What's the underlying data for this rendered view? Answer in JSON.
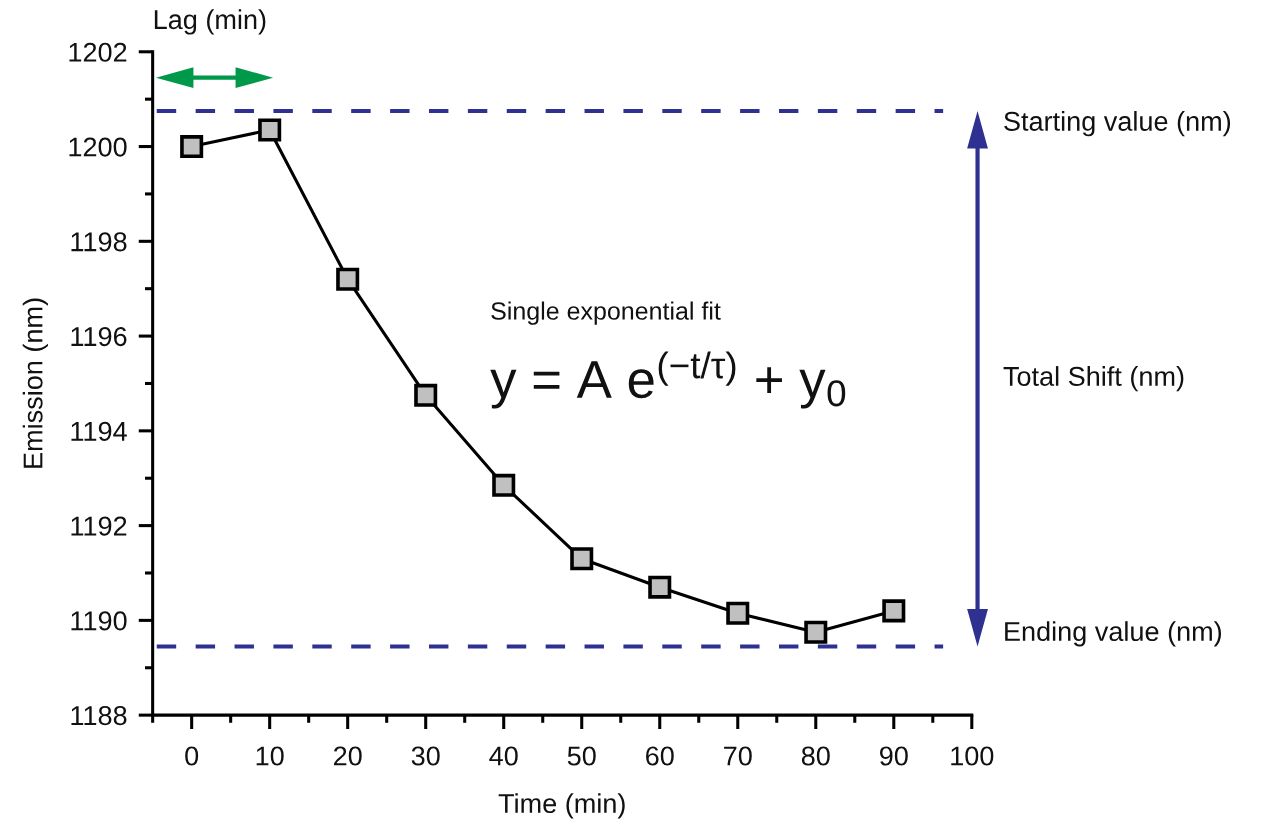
{
  "chart_data": {
    "type": "line",
    "xlabel": "Time (min)",
    "ylabel": "Emission (nm)",
    "x": [
      0,
      10,
      20,
      30,
      40,
      50,
      60,
      70,
      80,
      90
    ],
    "series": [
      {
        "color": "#000000",
        "values": [
          1200.0,
          1200.35,
          1197.2,
          1194.75,
          1192.85,
          1191.3,
          1190.7,
          1190.15,
          1189.75,
          1190.2
        ]
      }
    ],
    "marker": "square",
    "line_style": "solid",
    "xlim": [
      -5,
      100
    ],
    "xticks": [
      {
        "value": -5,
        "label": null
      },
      0,
      {
        "value": 5,
        "label": null
      },
      10,
      {
        "value": 15,
        "label": null
      },
      20,
      {
        "value": 25,
        "label": null
      },
      30,
      {
        "value": 35,
        "label": null
      },
      40,
      {
        "value": 45,
        "label": null
      },
      50,
      {
        "value": 55,
        "label": null
      },
      60,
      {
        "value": 65,
        "label": null
      },
      70,
      {
        "value": 75,
        "label": null
      },
      80,
      {
        "value": 85,
        "label": null
      },
      90,
      {
        "value": 95,
        "label": null
      },
      100
    ],
    "ylim": [
      1188,
      1202
    ],
    "yticks": [
      1188,
      {
        "value": 1189,
        "label": null
      },
      1190,
      {
        "value": 1191,
        "label": null
      },
      1192,
      {
        "value": 1193,
        "label": null
      },
      1194,
      {
        "value": 1195,
        "label": null
      },
      1196,
      {
        "value": 1197,
        "label": null
      },
      1198,
      {
        "value": 1199,
        "label": null
      },
      1200,
      {
        "value": 1201,
        "label": null
      },
      1202
    ],
    "ref_lines": [
      {
        "axis": "y",
        "value": 1200.75,
        "label": "Starting value (nm)",
        "color": "#2e3192",
        "line_style": "dashed"
      },
      {
        "axis": "y",
        "value": 1189.45,
        "label": "Ending value (nm)",
        "color": "#2e3192",
        "line_style": "dashed"
      }
    ],
    "annotations": [
      "Lag (min)",
      "Single exponential fit",
      "y = A e$^{(−t/τ)}$ + y$_{0}$",
      "Total Shift (nm)"
    ]
  }
}
